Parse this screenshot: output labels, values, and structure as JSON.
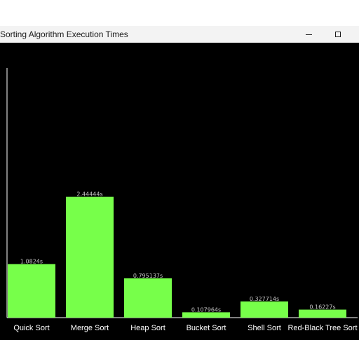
{
  "window": {
    "title": "Sorting Algorithm Execution Times"
  },
  "colors": {
    "bar": "#77ff4a",
    "background": "#000000",
    "axis": "#ffffff",
    "label": "#ffffff",
    "value_label": "#c8c8c8"
  },
  "chart_data": {
    "type": "bar",
    "title": "",
    "xlabel": "",
    "ylabel": "",
    "categories": [
      "Quick Sort",
      "Merge Sort",
      "Heap Sort",
      "Bucket Sort",
      "Shell Sort",
      "Red-Black Tree Sort"
    ],
    "values": [
      1.0824,
      2.44444,
      0.795137,
      0.107964,
      0.327714,
      0.16227
    ],
    "value_labels": [
      "1.0824s",
      "2.44444s",
      "0.795137s",
      "0.107964s",
      "0.327714s",
      "0.16227s"
    ],
    "ylim": [
      0,
      5.05
    ],
    "grid": false,
    "legend": "none"
  }
}
